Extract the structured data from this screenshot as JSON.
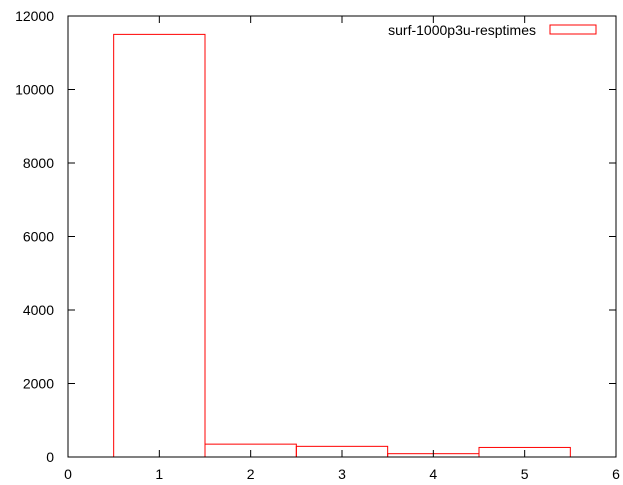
{
  "chart_data": {
    "type": "bar",
    "style": "histogram-outline",
    "x": [
      1,
      2,
      3,
      4,
      5
    ],
    "bar_width": 1,
    "series": [
      {
        "name": "surf-1000p3u-resptimes",
        "values": [
          11500,
          350,
          290,
          90,
          260
        ],
        "color": "#ff0000"
      }
    ],
    "xlim": [
      0,
      6
    ],
    "ylim": [
      0,
      12000
    ],
    "x_ticks": [
      0,
      1,
      2,
      3,
      4,
      5,
      6
    ],
    "y_ticks": [
      0,
      2000,
      4000,
      6000,
      8000,
      10000,
      12000
    ],
    "title": "",
    "xlabel": "",
    "ylabel": "",
    "grid": false,
    "legend_position": "top-right"
  }
}
